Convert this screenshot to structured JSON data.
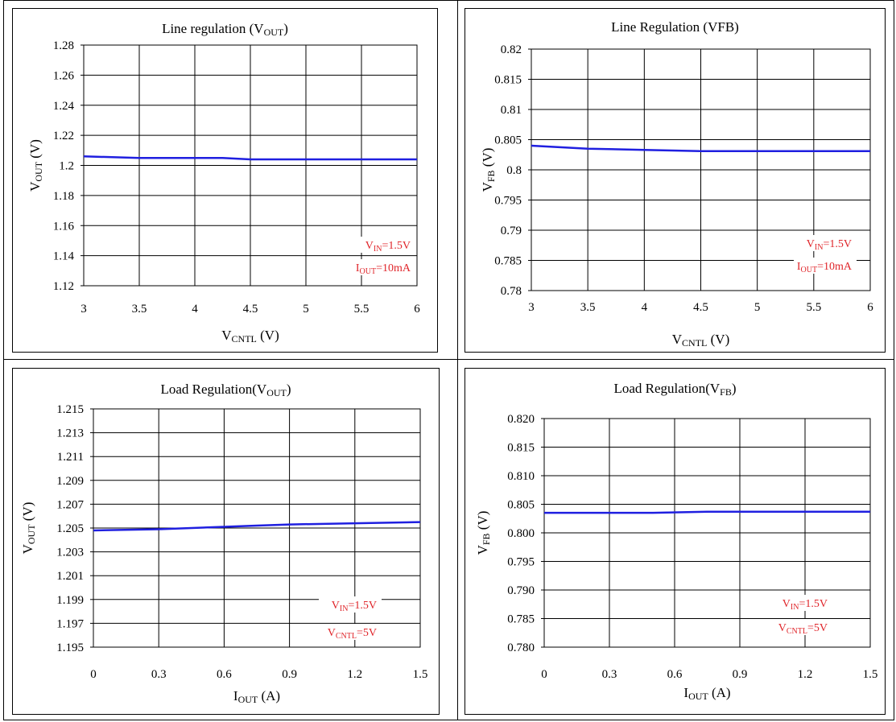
{
  "colors": {
    "series": "#1f1fe0",
    "annotation": "#e0262b",
    "grid": "#000000"
  },
  "chart_data": [
    {
      "type": "line",
      "title_main": "Line regulation (V",
      "title_sub": "OUT",
      "title_tail": ")",
      "xlabel_main": "V",
      "xlabel_sub": "CNTL",
      "xlabel_tail": " (V)",
      "ylabel_main": "V",
      "ylabel_sub": "OUT",
      "ylabel_tail": " (V)",
      "xlim": [
        3,
        6
      ],
      "ylim": [
        1.12,
        1.28
      ],
      "xticks": [
        "3",
        "3.5",
        "4",
        "4.5",
        "5",
        "5.5",
        "6"
      ],
      "yticks": [
        "1.12",
        "1.14",
        "1.16",
        "1.18",
        "1.2",
        "1.22",
        "1.24",
        "1.26",
        "1.28"
      ],
      "x": [
        3,
        3.5,
        4,
        4.25,
        4.5,
        5,
        5.5,
        6
      ],
      "series": [
        {
          "values": [
            1.206,
            1.205,
            1.205,
            1.205,
            1.204,
            1.204,
            1.204,
            1.204
          ]
        }
      ],
      "annotations": [
        {
          "main": "V",
          "sub": "IN",
          "tail": "=1.5V"
        },
        {
          "main": "I",
          "sub": "OUT",
          "tail": "=10mA"
        }
      ]
    },
    {
      "type": "line",
      "title_main": "Line Regulation (VFB)",
      "title_sub": "",
      "title_tail": "",
      "xlabel_main": "V",
      "xlabel_sub": "CNTL",
      "xlabel_tail": " (V)",
      "ylabel_main": "V",
      "ylabel_sub": "FB",
      "ylabel_tail": " (V)",
      "xlim": [
        3,
        6
      ],
      "ylim": [
        0.78,
        0.82
      ],
      "xticks": [
        "3",
        "3.5",
        "4",
        "4.5",
        "5",
        "5.5",
        "6"
      ],
      "yticks": [
        "0.78",
        "0.785",
        "0.79",
        "0.795",
        "0.8",
        "0.805",
        "0.81",
        "0.815",
        "0.82"
      ],
      "x": [
        3,
        3.5,
        4,
        4.5,
        5,
        5.5,
        6
      ],
      "series": [
        {
          "values": [
            0.804,
            0.8035,
            0.8033,
            0.8031,
            0.8031,
            0.8031,
            0.8031
          ]
        }
      ],
      "annotations": [
        {
          "main": "V",
          "sub": "IN",
          "tail": "=1.5V"
        },
        {
          "main": "I",
          "sub": "OUT",
          "tail": "=10mA"
        }
      ]
    },
    {
      "type": "line",
      "title_main": "Load Regulation(V",
      "title_sub": "OUT",
      "title_tail": ")",
      "xlabel_main": "I",
      "xlabel_sub": "OUT",
      "xlabel_tail": " (A)",
      "ylabel_main": "V",
      "ylabel_sub": "OUT",
      "ylabel_tail": " (V)",
      "xlim": [
        0,
        1.5
      ],
      "ylim": [
        1.195,
        1.215
      ],
      "xticks": [
        "0",
        "0.3",
        "0.6",
        "0.9",
        "1.2",
        "1.5"
      ],
      "yticks": [
        "1.195",
        "1.197",
        "1.199",
        "1.201",
        "1.203",
        "1.205",
        "1.207",
        "1.209",
        "1.211",
        "1.213",
        "1.215"
      ],
      "x": [
        0,
        0.3,
        0.6,
        0.75,
        0.9,
        1.2,
        1.5
      ],
      "series": [
        {
          "values": [
            1.2048,
            1.2049,
            1.2051,
            1.2052,
            1.2053,
            1.2054,
            1.2055
          ]
        }
      ],
      "annotations": [
        {
          "main": "V",
          "sub": "IN",
          "tail": "=1.5V"
        },
        {
          "main": "V",
          "sub": "CNTL",
          "tail": "=5V"
        }
      ]
    },
    {
      "type": "line",
      "title_main": "Load Regulation(V",
      "title_sub": "FB",
      "title_tail": ")",
      "xlabel_main": "I",
      "xlabel_sub": "OUT",
      "xlabel_tail": " (A)",
      "ylabel_main": "V",
      "ylabel_sub": "FB",
      "ylabel_tail": " (V)",
      "xlim": [
        0,
        1.5
      ],
      "ylim": [
        0.78,
        0.82
      ],
      "xticks": [
        "0",
        "0.3",
        "0.6",
        "0.9",
        "1.2",
        "1.5"
      ],
      "yticks": [
        "0.780",
        "0.785",
        "0.790",
        "0.795",
        "0.800",
        "0.805",
        "0.810",
        "0.815",
        "0.820"
      ],
      "x": [
        0,
        0.3,
        0.5,
        0.75,
        0.9,
        1.2,
        1.5
      ],
      "series": [
        {
          "values": [
            0.8035,
            0.8035,
            0.8035,
            0.8037,
            0.8037,
            0.8037,
            0.8037
          ]
        }
      ],
      "annotations": [
        {
          "main": "V",
          "sub": "IN",
          "tail": "=1.5V"
        },
        {
          "main": "V",
          "sub": "CNTL",
          "tail": "=5V"
        }
      ]
    }
  ]
}
